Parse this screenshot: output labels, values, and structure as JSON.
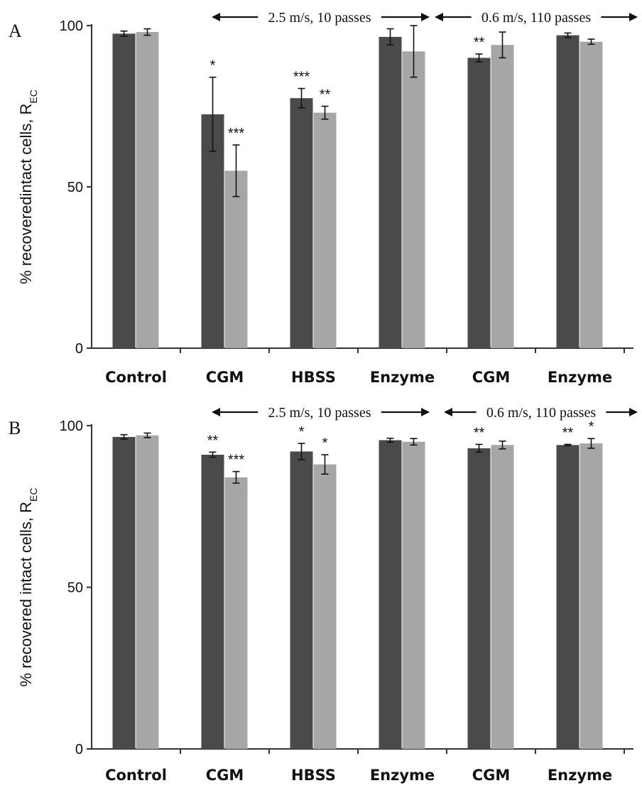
{
  "chart_data": [
    {
      "type": "bar",
      "panel_letter": "A",
      "categories": [
        "Control",
        "CGM",
        "HBSS",
        "Enzyme",
        "CGM",
        "Enzyme"
      ],
      "series": [
        {
          "values": [
            97.5,
            72.5,
            77.5,
            96.5,
            90,
            97
          ],
          "errors": [
            0.8,
            11.5,
            3,
            2.5,
            1.2,
            0.7
          ]
        },
        {
          "values": [
            98,
            55,
            73,
            92,
            94,
            95
          ],
          "errors": [
            1,
            8,
            2,
            8,
            4,
            0.8
          ]
        }
      ],
      "significance": [
        {
          "series": 0,
          "category": 1,
          "label": "*"
        },
        {
          "series": 1,
          "category": 1,
          "label": "***"
        },
        {
          "series": 0,
          "category": 2,
          "label": "***"
        },
        {
          "series": 1,
          "category": 2,
          "label": "**"
        },
        {
          "series": 0,
          "category": 4,
          "label": "**"
        }
      ],
      "annotations": [
        "2.5 m/s, 10 passes",
        "0.6 m/s, 110 passes"
      ],
      "ylabel": "% recoveredintact cells, R",
      "ylabel_sub": "EC",
      "yticks": [
        0,
        50,
        100
      ],
      "ylim": [
        0,
        100
      ],
      "grid": false,
      "colors": [
        "#4a4a4a",
        "#a6a6a6"
      ]
    },
    {
      "type": "bar",
      "panel_letter": "B",
      "categories": [
        "Control",
        "CGM",
        "HBSS",
        "Enzyme",
        "CGM",
        "Enzyme"
      ],
      "series": [
        {
          "values": [
            96.5,
            91,
            92,
            95.5,
            93,
            94
          ],
          "errors": [
            0.7,
            0.8,
            2.5,
            0.6,
            1.2,
            0.2
          ]
        },
        {
          "values": [
            97,
            84,
            88,
            95,
            94,
            94.5
          ],
          "errors": [
            0.7,
            1.8,
            3,
            1,
            1.2,
            1.5
          ]
        }
      ],
      "significance": [
        {
          "series": 0,
          "category": 1,
          "label": "**"
        },
        {
          "series": 1,
          "category": 1,
          "label": "***"
        },
        {
          "series": 0,
          "category": 2,
          "label": "*"
        },
        {
          "series": 1,
          "category": 2,
          "label": "*"
        },
        {
          "series": 0,
          "category": 4,
          "label": "**"
        },
        {
          "series": 0,
          "category": 5,
          "label": "**"
        },
        {
          "series": 1,
          "category": 5,
          "label": "*"
        }
      ],
      "annotations": [
        "2.5 m/s, 10 passes",
        "0.6 m/s, 110 passes"
      ],
      "ylabel": "% recovered intact cells, R",
      "ylabel_sub": "EC",
      "yticks": [
        0,
        50,
        100
      ],
      "ylim": [
        0,
        100
      ],
      "grid": false,
      "colors": [
        "#4a4a4a",
        "#a6a6a6"
      ]
    }
  ]
}
